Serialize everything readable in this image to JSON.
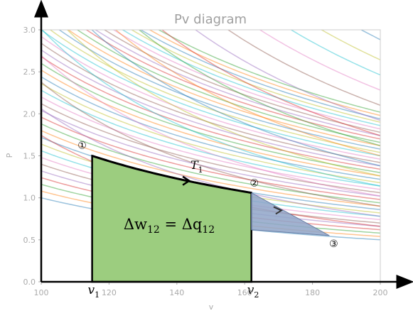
{
  "chart_data": {
    "type": "line",
    "title": "Pv diagram",
    "xlabel": "v",
    "ylabel": "P",
    "xlim": [
      100,
      200
    ],
    "ylim": [
      0,
      3
    ],
    "xticks": [
      "100",
      "120",
      "140",
      "160",
      "180",
      "200"
    ],
    "yticks": [
      "0.0",
      "0.5",
      "1.0",
      "1.5",
      "2.0",
      "2.5",
      "3.0"
    ],
    "grid": false,
    "isotherm_constants": [
      100,
      108,
      116,
      124,
      132,
      140,
      148,
      156,
      164,
      172,
      180,
      188,
      196,
      204,
      212,
      220,
      228,
      236,
      244,
      252,
      260,
      268,
      276,
      284,
      292,
      300,
      308,
      316,
      324,
      332,
      340,
      348,
      356,
      364,
      372,
      380,
      388,
      396,
      404
    ],
    "adiabat_constants": [
      1100,
      1300,
      1500,
      1700,
      1900,
      2100,
      2300,
      2500,
      2700,
      2900,
      3200,
      3500,
      3800,
      4100,
      4400,
      4800,
      5200,
      5600,
      6000
    ],
    "adiabat_exponent": 1.4,
    "palette": [
      "#1f77b4",
      "#ff7f0e",
      "#2ca02c",
      "#d62728",
      "#9467bd",
      "#8c564b",
      "#e377c2",
      "#17becf",
      "#bcbd22"
    ],
    "process_12": {
      "label": "T",
      "label_sub": "1",
      "points": [
        [
          115,
          1.5
        ],
        [
          162,
          1.06
        ]
      ],
      "color": "#000000"
    },
    "area_12": {
      "label": "Δw",
      "label_sub": "12",
      "equals": " = Δq",
      "equals_sub": "12",
      "color": "#9ccd7f"
    },
    "triangle_23": {
      "points": [
        [
          162,
          1.06
        ],
        [
          185,
          0.55
        ],
        [
          162,
          0.62
        ]
      ],
      "color": "#8fa4c8"
    },
    "states": [
      {
        "label": "①",
        "v": 115,
        "p": 1.5
      },
      {
        "label": "②",
        "v": 162,
        "p": 1.06
      },
      {
        "label": "③",
        "v": 185,
        "p": 0.55
      }
    ],
    "volume_markers": [
      {
        "label": "v",
        "sub": "1",
        "v": 115
      },
      {
        "label": "v",
        "sub": "2",
        "v": 162
      }
    ]
  }
}
